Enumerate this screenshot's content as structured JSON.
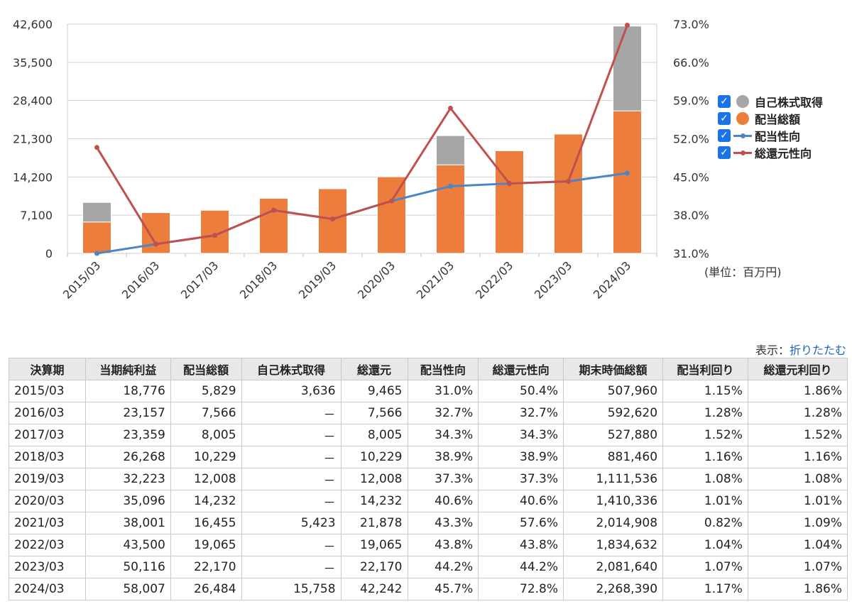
{
  "chart_data": {
    "type": "bar+line",
    "categories": [
      "2015/03",
      "2016/03",
      "2017/03",
      "2018/03",
      "2019/03",
      "2020/03",
      "2021/03",
      "2022/03",
      "2023/03",
      "2024/03"
    ],
    "y_left": {
      "ticks": [
        "0",
        "7,100",
        "14,200",
        "21,300",
        "28,400",
        "35,500",
        "42,600"
      ],
      "ylim": [
        0,
        42600
      ]
    },
    "y_right": {
      "ticks": [
        "31.0%",
        "38.0%",
        "45.0%",
        "52.0%",
        "59.0%",
        "66.0%",
        "73.0%"
      ],
      "ylim": [
        31,
        73
      ]
    },
    "series": [
      {
        "name": "配当総額",
        "type": "bar",
        "stack": "a",
        "axis": "left",
        "color": "#ec7d3c",
        "values": [
          5829,
          7566,
          8005,
          10229,
          12008,
          14232,
          16455,
          19065,
          22170,
          26484
        ]
      },
      {
        "name": "自己株式取得",
        "type": "bar",
        "stack": "a",
        "axis": "left",
        "color": "#a6a6a6",
        "values": [
          3636,
          0,
          0,
          0,
          0,
          0,
          5423,
          0,
          0,
          15758
        ]
      },
      {
        "name": "配当性向",
        "type": "line",
        "axis": "right",
        "color": "#4a86c5",
        "values": [
          31.0,
          32.7,
          34.3,
          38.9,
          37.3,
          40.6,
          43.3,
          43.8,
          44.2,
          45.7
        ]
      },
      {
        "name": "総還元性向",
        "type": "line",
        "axis": "right",
        "color": "#c0504d",
        "values": [
          50.4,
          32.7,
          34.3,
          38.9,
          37.3,
          40.6,
          57.6,
          43.8,
          44.2,
          72.8
        ]
      }
    ],
    "legend": [
      "自己株式取得",
      "配当総額",
      "配当性向",
      "総還元性向"
    ],
    "legend_position": "right",
    "grid": true
  },
  "unit_label": "(単位：百万円)",
  "display_label": "表示：",
  "collapse_link": "折りたたむ",
  "checkbox_mark": "✓",
  "table": {
    "headers": [
      "決算期",
      "当期純利益",
      "配当総額",
      "自己株式取得",
      "総還元",
      "配当性向",
      "総還元性向",
      "期末時価総額",
      "配当利回り",
      "総還元利回り"
    ],
    "rows": [
      [
        "2015/03",
        "18,776",
        "5,829",
        "3,636",
        "9,465",
        "31.0%",
        "50.4%",
        "507,960",
        "1.15%",
        "1.86%"
      ],
      [
        "2016/03",
        "23,157",
        "7,566",
        "－",
        "7,566",
        "32.7%",
        "32.7%",
        "592,620",
        "1.28%",
        "1.28%"
      ],
      [
        "2017/03",
        "23,359",
        "8,005",
        "－",
        "8,005",
        "34.3%",
        "34.3%",
        "527,880",
        "1.52%",
        "1.52%"
      ],
      [
        "2018/03",
        "26,268",
        "10,229",
        "－",
        "10,229",
        "38.9%",
        "38.9%",
        "881,460",
        "1.16%",
        "1.16%"
      ],
      [
        "2019/03",
        "32,223",
        "12,008",
        "－",
        "12,008",
        "37.3%",
        "37.3%",
        "1,111,536",
        "1.08%",
        "1.08%"
      ],
      [
        "2020/03",
        "35,096",
        "14,232",
        "－",
        "14,232",
        "40.6%",
        "40.6%",
        "1,410,336",
        "1.01%",
        "1.01%"
      ],
      [
        "2021/03",
        "38,001",
        "16,455",
        "5,423",
        "21,878",
        "43.3%",
        "57.6%",
        "2,014,908",
        "0.82%",
        "1.09%"
      ],
      [
        "2022/03",
        "43,500",
        "19,065",
        "－",
        "19,065",
        "43.8%",
        "43.8%",
        "1,834,632",
        "1.04%",
        "1.04%"
      ],
      [
        "2023/03",
        "50,116",
        "22,170",
        "－",
        "22,170",
        "44.2%",
        "44.2%",
        "2,081,640",
        "1.07%",
        "1.07%"
      ],
      [
        "2024/03",
        "58,007",
        "26,484",
        "15,758",
        "42,242",
        "45.7%",
        "72.8%",
        "2,268,390",
        "1.17%",
        "1.86%"
      ]
    ]
  }
}
